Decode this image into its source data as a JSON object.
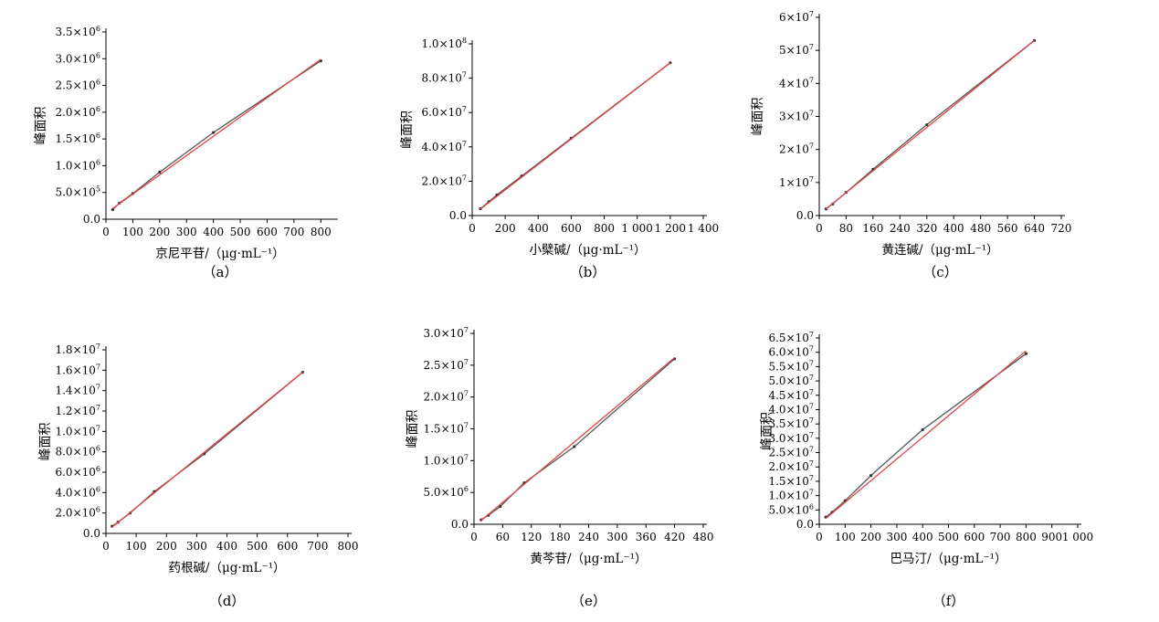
{
  "figure": {
    "common_ylabel": "峰面积"
  },
  "chart_data": [
    {
      "type": "line",
      "panel": "a",
      "caption": "（a）",
      "xlabel": "京尼平苷/（μg·mL⁻¹）",
      "ylabel": "峰面积",
      "xlim": [
        0,
        850
      ],
      "ylim": [
        0,
        3500000
      ],
      "xticks": [
        0,
        100,
        200,
        300,
        400,
        500,
        600,
        700,
        800
      ],
      "xticklabels": [
        "0",
        "100",
        "200",
        "300",
        "400",
        "500",
        "600",
        "700",
        "800"
      ],
      "yticks": [
        0,
        500000,
        1000000,
        1500000,
        2000000,
        2500000,
        3000000,
        3500000
      ],
      "yticklabels": [
        [
          "0.0",
          ""
        ],
        [
          "5.0×10",
          "5"
        ],
        [
          "1.0×10",
          "6"
        ],
        [
          "1.5×10",
          "6"
        ],
        [
          "2.0×10",
          "6"
        ],
        [
          "2.5×10",
          "6"
        ],
        [
          "3.0×10",
          "6"
        ],
        [
          "3.5×10",
          "6"
        ]
      ],
      "grid": false,
      "series": [
        {
          "role": "data",
          "x": [
            25,
            50,
            100,
            200,
            400,
            800
          ],
          "y": [
            180000,
            300000,
            480000,
            880000,
            1620000,
            2960000
          ]
        },
        {
          "role": "fit",
          "x": [
            25,
            800
          ],
          "y": [
            200000,
            2990000
          ]
        }
      ]
    },
    {
      "type": "line",
      "panel": "b",
      "caption": "（b）",
      "xlabel": "小檗碱/（μg·mL⁻¹）",
      "ylabel": "峰面积",
      "xlim": [
        0,
        1400
      ],
      "ylim": [
        0,
        100000000
      ],
      "xticks": [
        0,
        200,
        400,
        600,
        800,
        1000,
        1200,
        1400
      ],
      "xticklabels": [
        "0",
        "200",
        "400",
        "600",
        "800",
        "1 000",
        "1 200",
        "1 400"
      ],
      "yticks": [
        0,
        20000000,
        40000000,
        60000000,
        80000000,
        100000000
      ],
      "yticklabels": [
        [
          "0.0",
          ""
        ],
        [
          "2.0×10",
          "7"
        ],
        [
          "4.0×10",
          "7"
        ],
        [
          "6.0×10",
          "7"
        ],
        [
          "8.0×10",
          "7"
        ],
        [
          "1.0×10",
          "8"
        ]
      ],
      "grid": false,
      "series": [
        {
          "role": "data",
          "x": [
            50,
            100,
            150,
            300,
            600,
            1200
          ],
          "y": [
            4000000,
            8000000,
            12000000,
            23000000,
            45000000,
            89000000
          ]
        },
        {
          "role": "fit",
          "x": [
            50,
            1200
          ],
          "y": [
            3800000,
            89000000
          ]
        }
      ]
    },
    {
      "type": "line",
      "panel": "c",
      "caption": "（c）",
      "xlabel": "黄连碱/（μg·mL⁻¹）",
      "ylabel": "峰面积",
      "xlim": [
        0,
        720
      ],
      "ylim": [
        0,
        60000000
      ],
      "xticks": [
        0,
        80,
        160,
        240,
        320,
        400,
        480,
        560,
        640,
        720
      ],
      "xticklabels": [
        "0",
        "80",
        "160",
        "240",
        "320",
        "400",
        "480",
        "560",
        "640",
        "720"
      ],
      "yticks": [
        0,
        10000000,
        20000000,
        30000000,
        40000000,
        50000000,
        60000000
      ],
      "yticklabels": [
        [
          "0.0",
          ""
        ],
        [
          "1×10",
          "7"
        ],
        [
          "2×10",
          "7"
        ],
        [
          "3×10",
          "7"
        ],
        [
          "4×10",
          "7"
        ],
        [
          "5×10",
          "7"
        ],
        [
          "6×10",
          "7"
        ]
      ],
      "grid": false,
      "series": [
        {
          "role": "data",
          "x": [
            20,
            40,
            80,
            160,
            320,
            640
          ],
          "y": [
            2000000,
            3500000,
            7000000,
            14000000,
            27500000,
            53000000
          ]
        },
        {
          "role": "fit",
          "x": [
            20,
            640
          ],
          "y": [
            2000000,
            53000000
          ]
        }
      ]
    },
    {
      "type": "line",
      "panel": "d",
      "caption": "（d）",
      "xlabel": "药根碱/（μg·mL⁻¹）",
      "ylabel": "峰面积",
      "xlim": [
        0,
        800
      ],
      "ylim": [
        0,
        18000000
      ],
      "xticks": [
        0,
        100,
        200,
        300,
        400,
        500,
        600,
        700,
        800
      ],
      "xticklabels": [
        "0",
        "100",
        "200",
        "300",
        "400",
        "500",
        "600",
        "700",
        "800"
      ],
      "yticks": [
        0,
        2000000,
        4000000,
        6000000,
        8000000,
        10000000,
        12000000,
        14000000,
        16000000,
        18000000
      ],
      "yticklabels": [
        [
          "0.0",
          ""
        ],
        [
          "2.0×10",
          "6"
        ],
        [
          "4.0×10",
          "6"
        ],
        [
          "6.0×10",
          "6"
        ],
        [
          "8.0×10",
          "6"
        ],
        [
          "1.0×10",
          "7"
        ],
        [
          "1.2×10",
          "7"
        ],
        [
          "1.4×10",
          "7"
        ],
        [
          "1.6×10",
          "7"
        ],
        [
          "1.8×10",
          "7"
        ]
      ],
      "grid": false,
      "series": [
        {
          "role": "data",
          "x": [
            20,
            40,
            80,
            160,
            325,
            650
          ],
          "y": [
            700000,
            1100000,
            2000000,
            4100000,
            7800000,
            15800000
          ]
        },
        {
          "role": "fit",
          "x": [
            20,
            650
          ],
          "y": [
            600000,
            15800000
          ]
        }
      ]
    },
    {
      "type": "line",
      "panel": "e",
      "caption": "（e）",
      "xlabel": "黄芩苷/（μg·mL⁻¹）",
      "ylabel": "峰面积",
      "xlim": [
        0,
        480
      ],
      "ylim": [
        0,
        30000000
      ],
      "xticks": [
        0,
        60,
        120,
        180,
        240,
        300,
        360,
        420,
        480
      ],
      "xticklabels": [
        "0",
        "60",
        "120",
        "180",
        "240",
        "300",
        "360",
        "420",
        "480"
      ],
      "yticks": [
        0,
        5000000,
        10000000,
        15000000,
        20000000,
        25000000,
        30000000
      ],
      "yticklabels": [
        [
          "0.0",
          ""
        ],
        [
          "5.0×10",
          "6"
        ],
        [
          "1.0×10",
          "7"
        ],
        [
          "1.5×10",
          "7"
        ],
        [
          "2.0×10",
          "7"
        ],
        [
          "2.5×10",
          "7"
        ],
        [
          "3.0×10",
          "7"
        ]
      ],
      "grid": false,
      "series": [
        {
          "role": "data",
          "x": [
            15,
            30,
            55,
            105,
            210,
            420
          ],
          "y": [
            700000,
            1400000,
            2800000,
            6500000,
            12200000,
            26000000
          ]
        },
        {
          "role": "fit",
          "x": [
            15,
            420
          ],
          "y": [
            600000,
            26200000
          ]
        }
      ]
    },
    {
      "type": "line",
      "panel": "f",
      "caption": "（f）",
      "xlabel": "巴马汀/（μg·mL⁻¹）",
      "ylabel": "峰面积",
      "xlim": [
        0,
        1000
      ],
      "ylim": [
        0,
        65000000
      ],
      "xticks": [
        0,
        100,
        200,
        300,
        400,
        500,
        600,
        700,
        800,
        900,
        1000
      ],
      "xticklabels": [
        "0",
        "100",
        "200",
        "300",
        "400",
        "500",
        "600",
        "700",
        "800",
        "900",
        "1 000"
      ],
      "yticks": [
        0,
        5000000,
        10000000,
        15000000,
        20000000,
        25000000,
        30000000,
        35000000,
        40000000,
        45000000,
        50000000,
        55000000,
        60000000,
        65000000
      ],
      "yticklabels": [
        [
          "0.0",
          ""
        ],
        [
          "5.0×10",
          "6"
        ],
        [
          "1.0×10",
          "7"
        ],
        [
          "1.5×10",
          "7"
        ],
        [
          "2.0×10",
          "7"
        ],
        [
          "2.5×10",
          "7"
        ],
        [
          "3.0×10",
          "7"
        ],
        [
          "3.5×10",
          "7"
        ],
        [
          "4.0×10",
          "7"
        ],
        [
          "4.5×10",
          "7"
        ],
        [
          "5.0×10",
          "7"
        ],
        [
          "5.5×10",
          "7"
        ],
        [
          "6.0×10",
          "7"
        ],
        [
          "6.5×10",
          "7"
        ]
      ],
      "grid": false,
      "series": [
        {
          "role": "data",
          "x": [
            25,
            50,
            100,
            200,
            400,
            800
          ],
          "y": [
            2500000,
            4200000,
            8200000,
            17000000,
            33000000,
            59500000
          ]
        },
        {
          "role": "fit",
          "x": [
            25,
            800
          ],
          "y": [
            2000000,
            60500000
          ]
        }
      ]
    }
  ]
}
